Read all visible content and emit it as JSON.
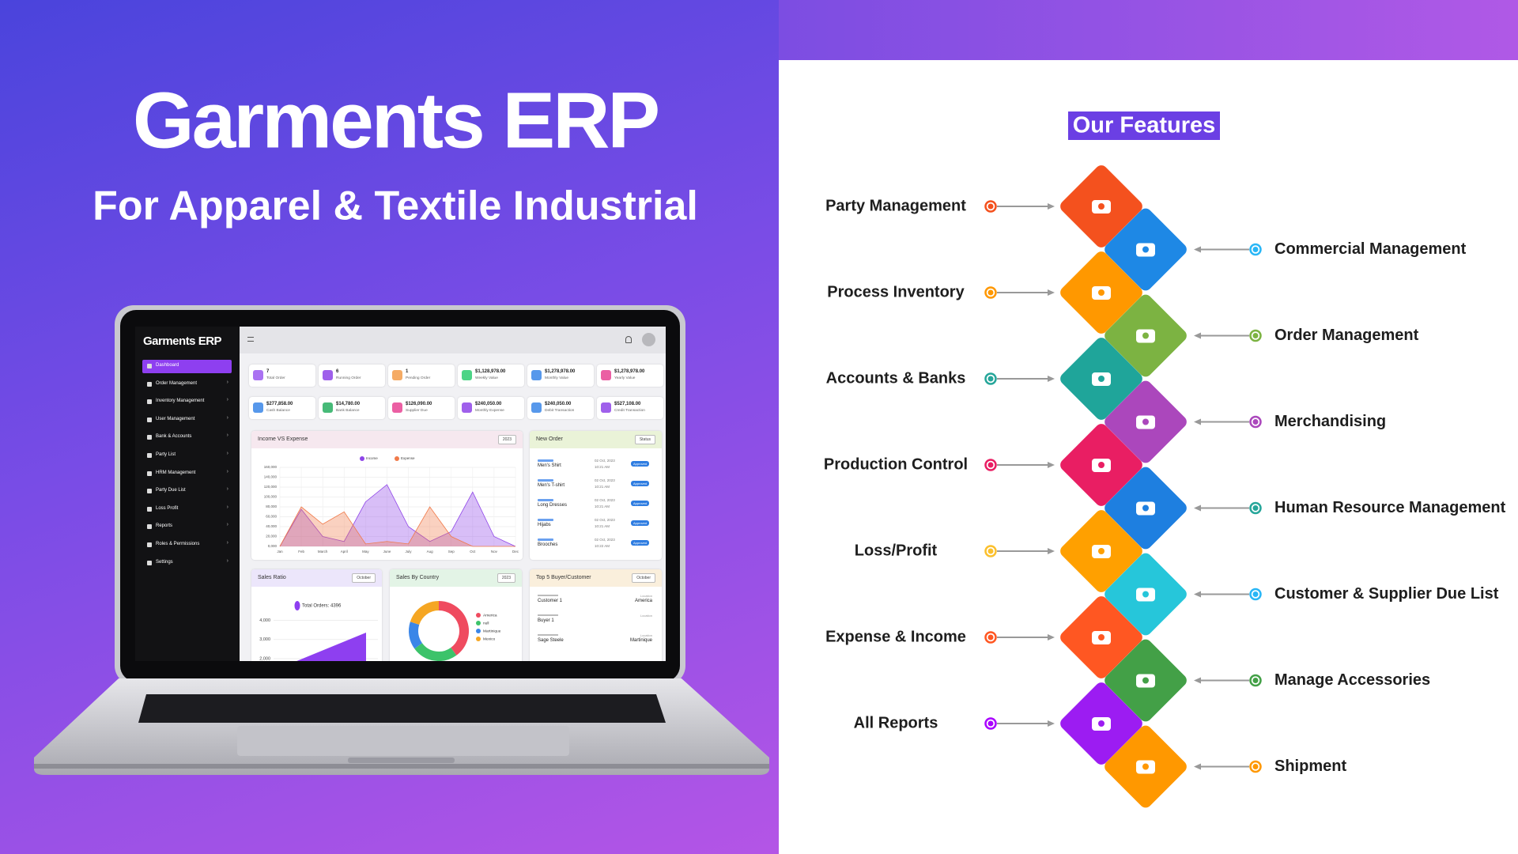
{
  "header": {
    "title": "Garments ERP",
    "subtitle": "For Apparel & Textile Industrial"
  },
  "dashboard": {
    "brand": "Garments ERP",
    "menu": [
      "Dashboard",
      "Order Management",
      "Inventory Management",
      "User Management",
      "Bank & Accounts",
      "Party List",
      "HRM Management",
      "Party Due List",
      "Loss Profit",
      "Reports",
      "Roles & Permissions",
      "Settings"
    ],
    "stats": [
      {
        "value": "7",
        "label": "Total Order"
      },
      {
        "value": "6",
        "label": "Running Order"
      },
      {
        "value": "1",
        "label": "Pending Order"
      },
      {
        "value": "$1,128,978.00",
        "label": "Weekly Value"
      },
      {
        "value": "$1,278,978.00",
        "label": "Monthly Value"
      },
      {
        "value": "$1,278,978.00",
        "label": "Yearly Value"
      },
      {
        "value": "$277,858.00",
        "label": "Cash Balance"
      },
      {
        "value": "$14,780.00",
        "label": "Bank Balance"
      },
      {
        "value": "$126,090.00",
        "label": "Supplier Due"
      },
      {
        "value": "$240,050.00",
        "label": "Monthly Expense"
      },
      {
        "value": "$240,050.00",
        "label": "Debit Transaction"
      },
      {
        "value": "$527,108.00",
        "label": "Credit Transaction"
      }
    ],
    "income_chart": {
      "type": "area",
      "title": "Income VS Expense",
      "filter": "2023",
      "categories": [
        "Jan",
        "Feb",
        "March",
        "April",
        "May",
        "June",
        "July",
        "Aug",
        "Sep",
        "Oct",
        "Nov",
        "Dec"
      ],
      "ylim": [
        0,
        160000
      ],
      "yticks": [
        {
          "value": 0,
          "label": "0,000"
        },
        {
          "value": 20000,
          "label": "20,000"
        },
        {
          "value": 40000,
          "label": "40,000"
        },
        {
          "value": 60000,
          "label": "60,000"
        },
        {
          "value": 80000,
          "label": "80,000"
        },
        {
          "value": 100000,
          "label": "100,000"
        },
        {
          "value": 120000,
          "label": "120,000"
        },
        {
          "value": 140000,
          "label": "140,000"
        },
        {
          "value": 160000,
          "label": "160,000"
        }
      ],
      "series": [
        {
          "name": "Income",
          "color": "#8e44e8",
          "values": [
            0,
            75000,
            20000,
            10000,
            90000,
            125000,
            40000,
            10000,
            30000,
            110000,
            20000,
            0
          ]
        },
        {
          "name": "Expense",
          "color": "#f07a4a",
          "values": [
            0,
            80000,
            45000,
            70000,
            5000,
            10000,
            5000,
            80000,
            20000,
            0,
            0,
            0
          ]
        }
      ]
    },
    "new_order": {
      "title": "New Order",
      "filter": "Status",
      "orders": [
        {
          "name": "Men's Shirt",
          "date": "02 Oct, 2023",
          "time": "10:21 AM",
          "status": "Approved"
        },
        {
          "name": "Men's T-shirt",
          "date": "02 Oct, 2023",
          "time": "10:21 AM",
          "status": "Approved"
        },
        {
          "name": "Long Dresses",
          "date": "02 Oct, 2023",
          "time": "10:21 AM",
          "status": "Approved"
        },
        {
          "name": "Hijabs",
          "date": "02 Oct, 2023",
          "time": "10:21 AM",
          "status": "Approved"
        },
        {
          "name": "Brooches",
          "date": "02 Oct, 2023",
          "time": "10:22 AM",
          "status": "Approved"
        }
      ]
    },
    "sales_ratio": {
      "title": "Sales Ratio",
      "filter": "October",
      "legend": "Total Orders: 4396",
      "ylim": [
        1500,
        4400
      ],
      "yticks": [
        {
          "value": 2000,
          "label": "2,000"
        },
        {
          "value": 3000,
          "label": "3,000"
        },
        {
          "value": 4000,
          "label": "4,000"
        }
      ]
    },
    "sales_by_country": {
      "type": "pie",
      "title": "Sales By Country",
      "filter": "2023",
      "categories": [
        "America",
        "null",
        "Martinique",
        "Mexico"
      ],
      "values": [
        40,
        25,
        15,
        20
      ],
      "colors": [
        "#ef4b5f",
        "#3cc36a",
        "#3a86e8",
        "#f5a623"
      ]
    },
    "top_buyers": {
      "title": "Top 5 Buyer/Customer",
      "filter": "October",
      "location_label": "Location",
      "buyers": [
        {
          "name": "Customer 1",
          "location": "America"
        },
        {
          "name": "Buyer 1",
          "location": ""
        },
        {
          "name": "Sage Steele",
          "location": "Martinique"
        }
      ]
    }
  },
  "features": {
    "title": "Our Features",
    "items": [
      "Party Management",
      "Commercial Management",
      "Process Inventory",
      "Order Management",
      "Accounts & Banks",
      "Merchandising",
      "Production Control",
      "Human Resource Management",
      "Loss/Profit",
      "Customer & Supplier Due List",
      "Expense & Income",
      "Manage Accessories",
      "All Reports",
      "Shipment"
    ]
  }
}
